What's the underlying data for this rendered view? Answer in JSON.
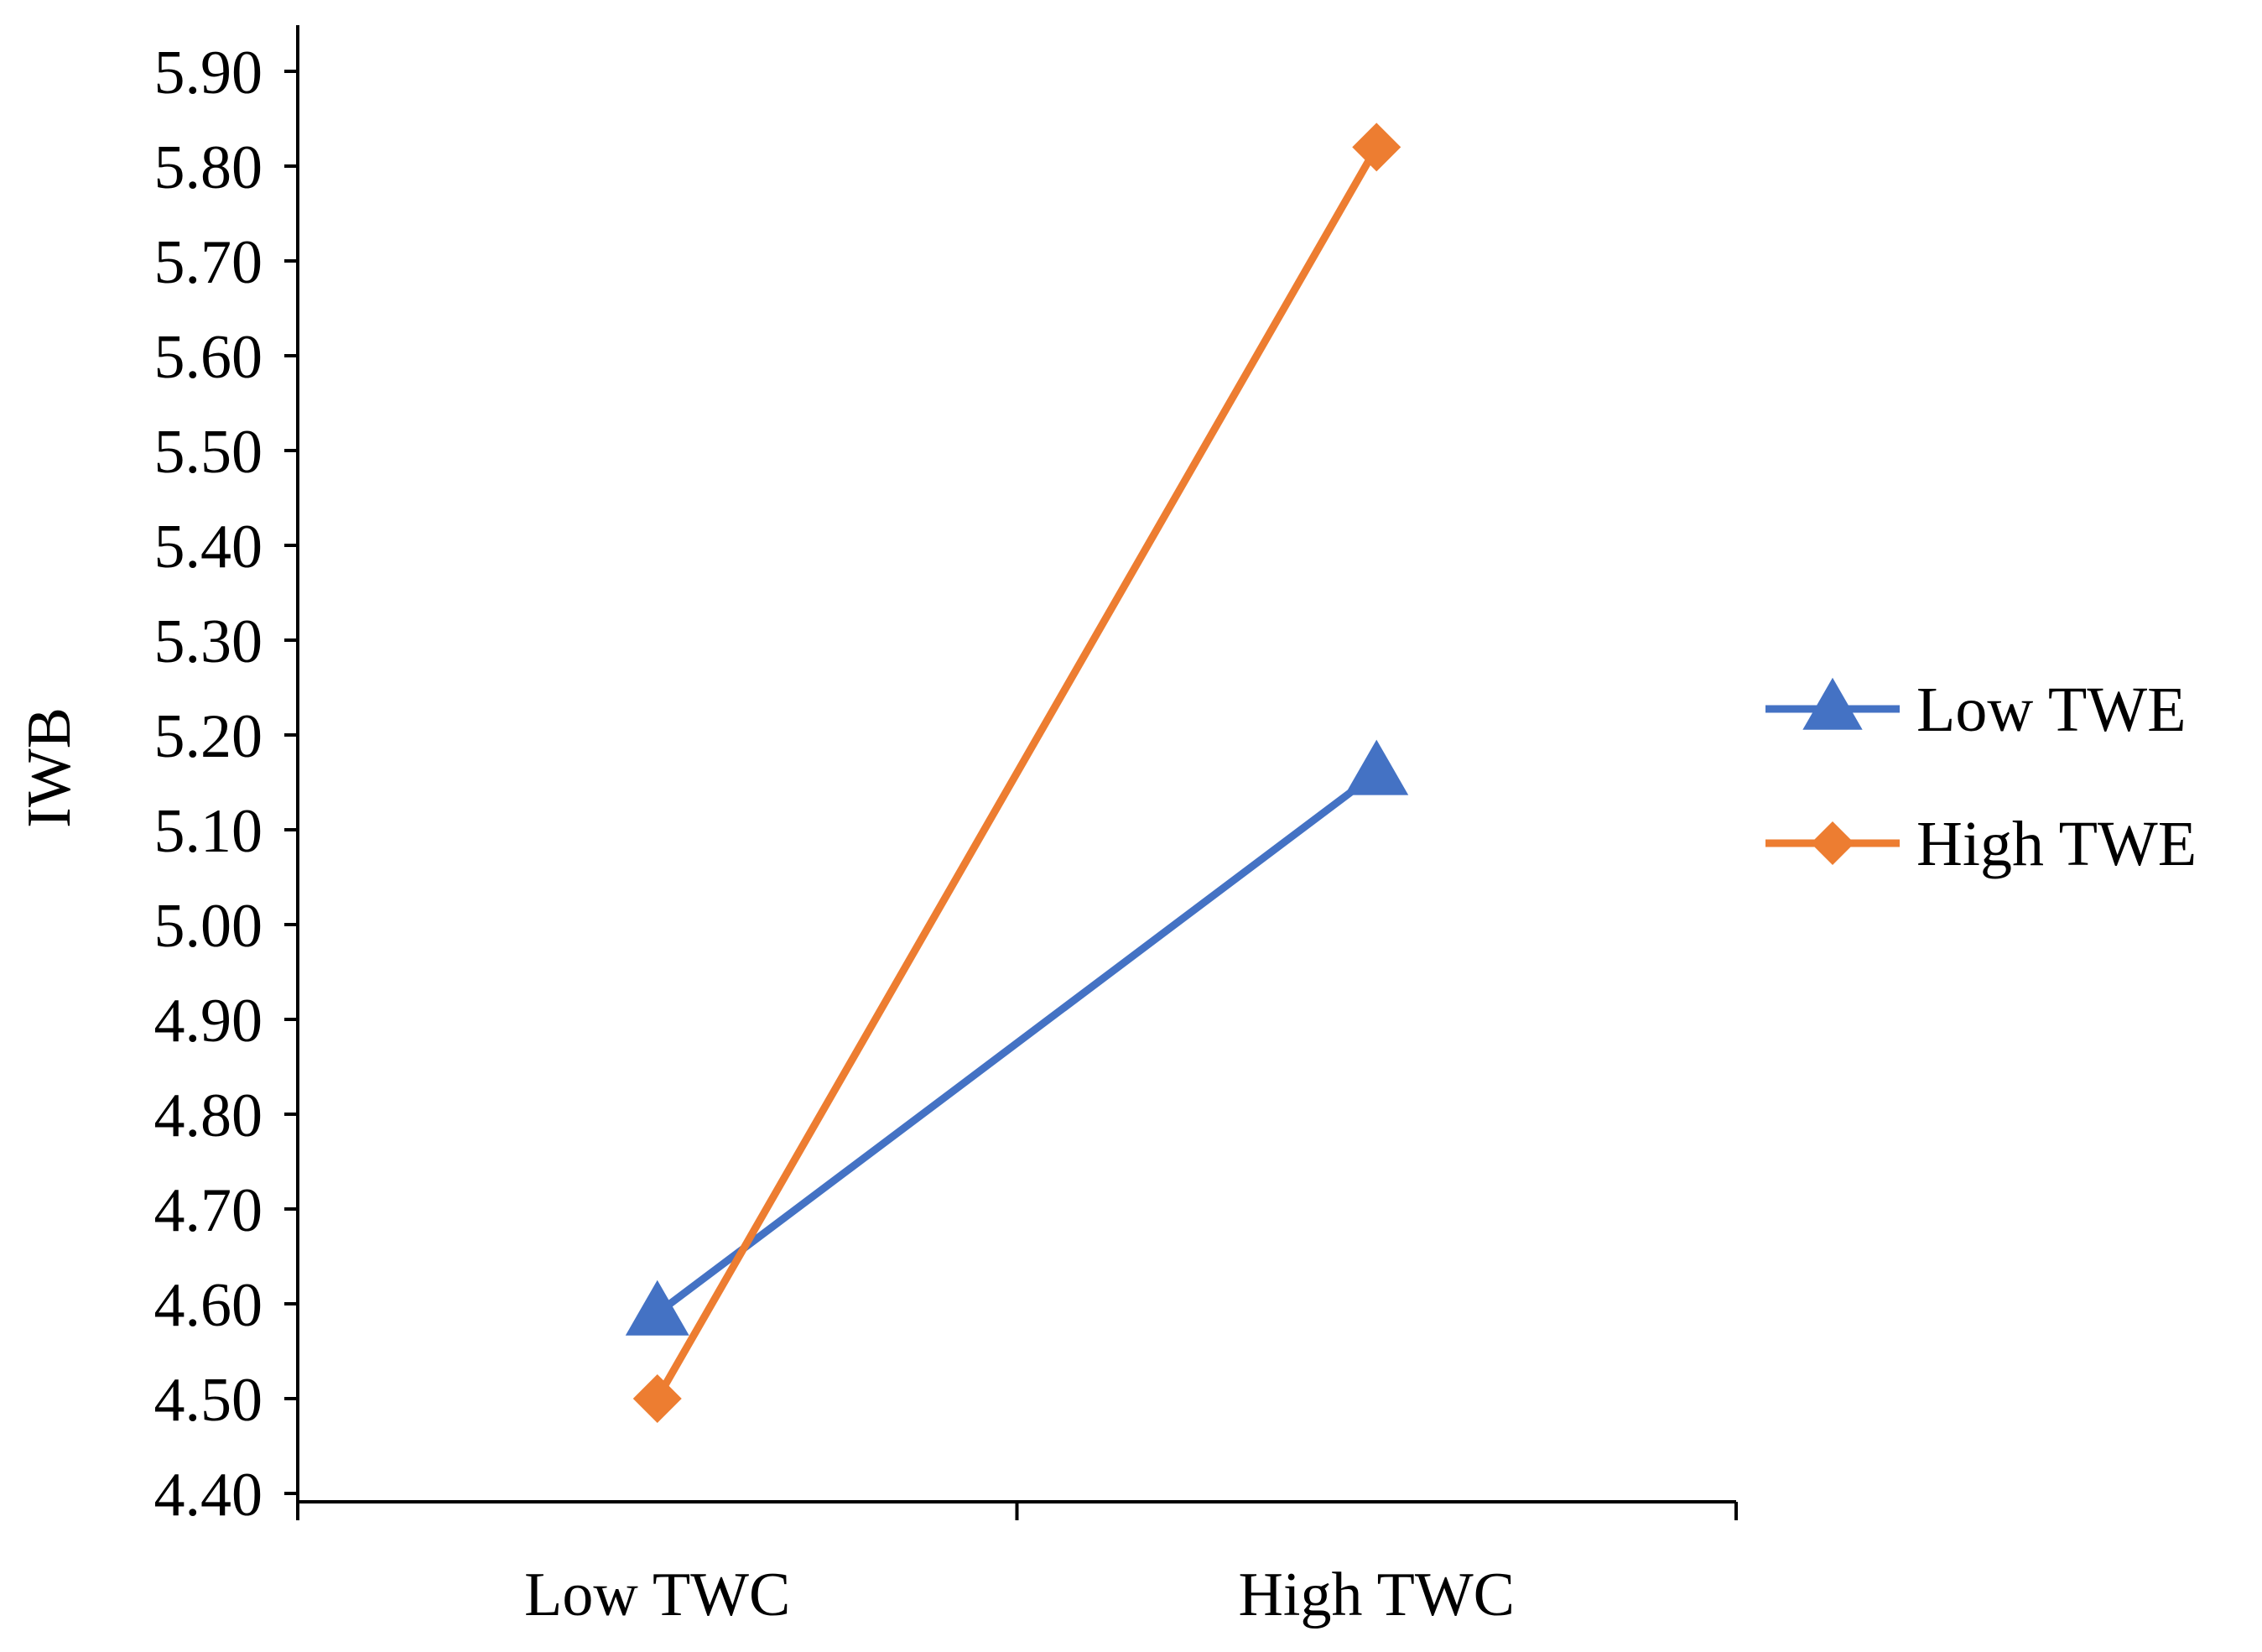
{
  "chart_data": {
    "type": "line",
    "title": "",
    "xlabel": "",
    "ylabel": "IWB",
    "categories": [
      "Low TWC",
      "High TWC"
    ],
    "y_ticks": [
      "4.40",
      "4.50",
      "4.60",
      "4.70",
      "4.80",
      "4.90",
      "5.00",
      "5.10",
      "5.20",
      "5.30",
      "5.40",
      "5.50",
      "5.60",
      "5.70",
      "5.80",
      "5.90"
    ],
    "ylim": [
      4.4,
      5.9
    ],
    "grid": false,
    "legend_position": "right",
    "series": [
      {
        "name": "Low TWE",
        "values": [
          4.59,
          5.16
        ],
        "color": "#4472C4",
        "marker": "triangle"
      },
      {
        "name": "High TWE",
        "values": [
          4.5,
          5.82
        ],
        "color": "#ED7D31",
        "marker": "diamond"
      }
    ]
  }
}
